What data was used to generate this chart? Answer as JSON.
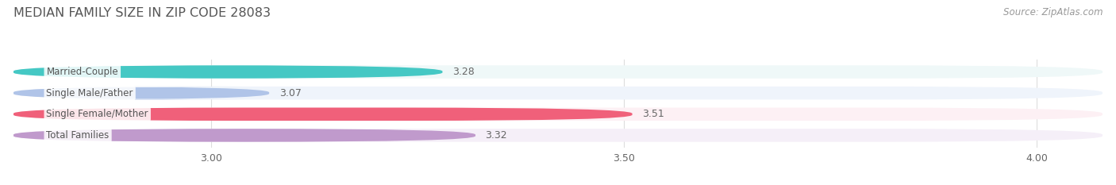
{
  "title": "MEDIAN FAMILY SIZE IN ZIP CODE 28083",
  "source": "Source: ZipAtlas.com",
  "categories": [
    "Married-Couple",
    "Single Male/Father",
    "Single Female/Mother",
    "Total Families"
  ],
  "values": [
    3.28,
    3.07,
    3.51,
    3.32
  ],
  "bar_colors": [
    "#45c8c4",
    "#b0c4e8",
    "#f0607a",
    "#c09acc"
  ],
  "bar_bg_colors": [
    "#eff8f8",
    "#eff4fb",
    "#fdf0f4",
    "#f5eff8"
  ],
  "xlim_left": 2.76,
  "xlim_right": 4.08,
  "xticks": [
    3.0,
    3.5,
    4.0
  ],
  "value_label_color": "#666666",
  "title_color": "#555555",
  "source_color": "#999999",
  "label_color": "#555555",
  "background_color": "#ffffff",
  "bar_height": 0.62,
  "title_fontsize": 11.5,
  "label_fontsize": 8.5,
  "value_fontsize": 9,
  "tick_fontsize": 9,
  "source_fontsize": 8.5
}
